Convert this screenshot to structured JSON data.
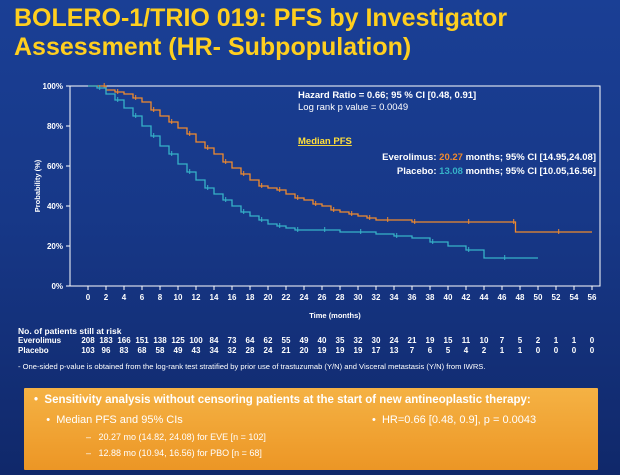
{
  "title": {
    "line1": "BOLERO-1/TRIO 019: PFS by Investigator",
    "line2": "Assessment (HR- Subpopulation)"
  },
  "colors": {
    "background": "#1a3f95",
    "title": "#ffcf1f",
    "everolimus": "#f08a2e",
    "placebo": "#36b2c8",
    "box": "#f0a535"
  },
  "chart_data": {
    "type": "line",
    "title": "",
    "xlabel": "Time (months)",
    "ylabel": "Probability (%)",
    "xlim": [
      0,
      56
    ],
    "ylim": [
      0,
      100
    ],
    "x_ticks": [
      0,
      2,
      4,
      6,
      8,
      10,
      12,
      14,
      16,
      18,
      20,
      22,
      24,
      26,
      28,
      30,
      32,
      34,
      36,
      38,
      40,
      42,
      44,
      46,
      48,
      50,
      52,
      54,
      56
    ],
    "y_ticks": [
      0,
      20,
      40,
      60,
      80,
      100
    ],
    "y_tick_labels": [
      "0%",
      "20%",
      "40%",
      "60%",
      "80%",
      "100%"
    ],
    "grid": false,
    "series": [
      {
        "name": "Everolimus",
        "color": "#f08a2e",
        "points": [
          [
            0,
            100
          ],
          [
            1.5,
            100
          ],
          [
            2,
            98
          ],
          [
            3,
            97
          ],
          [
            4,
            96
          ],
          [
            5,
            94
          ],
          [
            6,
            92
          ],
          [
            7,
            88
          ],
          [
            8,
            85
          ],
          [
            9,
            82
          ],
          [
            10,
            79
          ],
          [
            11,
            76
          ],
          [
            12,
            72
          ],
          [
            13,
            69
          ],
          [
            14,
            66
          ],
          [
            15,
            62
          ],
          [
            16,
            59
          ],
          [
            17,
            56
          ],
          [
            18,
            53
          ],
          [
            19,
            50
          ],
          [
            20,
            49
          ],
          [
            21,
            48
          ],
          [
            22,
            46
          ],
          [
            23,
            44
          ],
          [
            24,
            43
          ],
          [
            25,
            41
          ],
          [
            26,
            40
          ],
          [
            27,
            38
          ],
          [
            28,
            37
          ],
          [
            29,
            36
          ],
          [
            30,
            35
          ],
          [
            31,
            34
          ],
          [
            32,
            33
          ],
          [
            33,
            33
          ],
          [
            34,
            33
          ],
          [
            36,
            32
          ],
          [
            40,
            32
          ],
          [
            42,
            32
          ],
          [
            45,
            32
          ],
          [
            47,
            32
          ],
          [
            47.5,
            27
          ],
          [
            52,
            27
          ],
          [
            56,
            27
          ]
        ]
      },
      {
        "name": "Placebo",
        "color": "#36b2c8",
        "points": [
          [
            0,
            100
          ],
          [
            1,
            99
          ],
          [
            2,
            96
          ],
          [
            3,
            93
          ],
          [
            4,
            89
          ],
          [
            5,
            85
          ],
          [
            6,
            80
          ],
          [
            7,
            75
          ],
          [
            8,
            70
          ],
          [
            9,
            66
          ],
          [
            10,
            61
          ],
          [
            11,
            57
          ],
          [
            12,
            53
          ],
          [
            13,
            49
          ],
          [
            14,
            46
          ],
          [
            15,
            43
          ],
          [
            16,
            40
          ],
          [
            17,
            37
          ],
          [
            18,
            35
          ],
          [
            19,
            33
          ],
          [
            20,
            31
          ],
          [
            21,
            30
          ],
          [
            22,
            29
          ],
          [
            23,
            28
          ],
          [
            24,
            28
          ],
          [
            26,
            28
          ],
          [
            28,
            27
          ],
          [
            30,
            27
          ],
          [
            32,
            26
          ],
          [
            34,
            25
          ],
          [
            36,
            24
          ],
          [
            38,
            22
          ],
          [
            40,
            20
          ],
          [
            42,
            18
          ],
          [
            44,
            14
          ],
          [
            46,
            14
          ],
          [
            48,
            14
          ],
          [
            50,
            14
          ]
        ]
      }
    ],
    "annotations": {
      "hr_line": "Hazard Ratio = 0.66; 95 % CI [0.48, 0.91]",
      "logrank_line": "Log rank p value = 0.0049",
      "median_header": "Median PFS",
      "evero_label": "Everolimus:",
      "evero_value": "20.27",
      "evero_rest": " months; 95% CI [14.95,24.08]",
      "placebo_label": "Placebo:",
      "placebo_value": "13.08",
      "placebo_rest": " months; 95% CI [10.05,16.56]"
    }
  },
  "risk_table": {
    "header": "No. of patients still at risk",
    "rows": [
      {
        "label": "Everolimus",
        "values": [
          "208",
          "183",
          "166",
          "151",
          "138",
          "125",
          "100",
          "84",
          "73",
          "64",
          "62",
          "55",
          "49",
          "40",
          "35",
          "32",
          "30",
          "24",
          "21",
          "19",
          "15",
          "11",
          "10",
          "7",
          "5",
          "2",
          "1",
          "1",
          "0"
        ]
      },
      {
        "label": "Placebo",
        "values": [
          "103",
          "96",
          "83",
          "68",
          "58",
          "49",
          "43",
          "34",
          "32",
          "28",
          "24",
          "21",
          "20",
          "19",
          "19",
          "19",
          "17",
          "13",
          "7",
          "6",
          "5",
          "4",
          "2",
          "1",
          "1",
          "0",
          "0",
          "0",
          "0"
        ]
      }
    ]
  },
  "footnote": "- One-sided p-value is obtained from the log-rank test stratified by prior use of trastuzumab (Y/N) and Visceral metastasis (Y/N) from IWRS.",
  "sensitivity": {
    "header": "Sensitivity analysis without censoring patients at the start of new antineoplastic therapy:",
    "median_line": "Median PFS and 95% CIs",
    "eve_line": "20.27 mo (14.82, 24.08) for EVE [n = 102]",
    "pbo_line": "12.88 mo (10.94, 16.56) for PBO [n = 68]",
    "hr_line": "HR=0.66 [0.48, 0.9], p = 0.0043",
    "bullet": "•",
    "dash": "–"
  }
}
